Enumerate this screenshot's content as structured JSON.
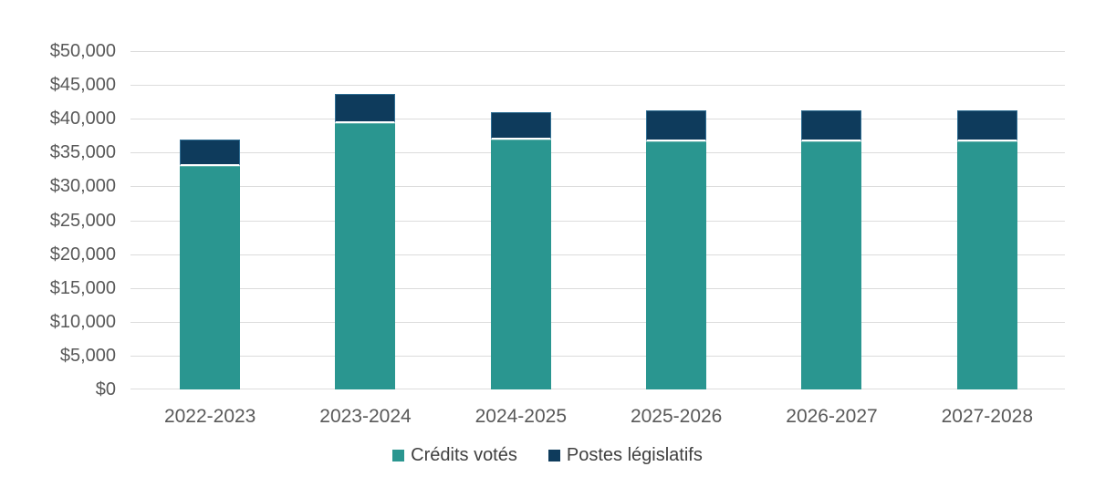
{
  "chart_data": {
    "type": "bar",
    "stacked": true,
    "title": "",
    "xlabel": "",
    "ylabel": "",
    "categories": [
      "2022-2023",
      "2023-2024",
      "2024-2025",
      "2025-2026",
      "2026-2027",
      "2027-2028"
    ],
    "series": [
      {
        "name": "Crédits votés",
        "color": "#2A9690",
        "edge_color": "#5FB0AA",
        "values": [
          33000,
          39300,
          37000,
          36600,
          36600,
          36600
        ]
      },
      {
        "name": "Postes législatifs",
        "color": "#0E3B5C",
        "edge_color": "#2F6E93",
        "values": [
          3900,
          4400,
          4000,
          4600,
          4600,
          4600
        ]
      }
    ],
    "ylim": [
      0,
      50000
    ],
    "y_tick_step": 5000,
    "y_tick_labels_top_to_bottom": [
      "$50,000",
      "$45,000",
      "$40,000",
      "$35,000",
      "$30,000",
      "$25,000",
      "$20,000",
      "$15,000",
      "$10,000",
      "$5,000",
      "$0"
    ],
    "grid": true,
    "gridline_color": "#dcdcdc",
    "axis_label_color": "#595959",
    "legend_text_color": "#404040",
    "legend_position": "bottom",
    "segment_divider_color": "#ffffff"
  }
}
